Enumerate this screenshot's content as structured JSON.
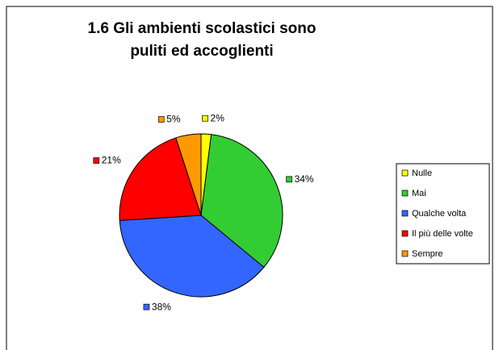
{
  "chart_data": {
    "type": "pie",
    "title": "1.6 Gli ambienti scolastici sono puliti ed accoglienti",
    "categories": [
      "Nulle",
      "Mai",
      "Qualche volta",
      "Il più delle volte",
      "Sempre"
    ],
    "values": [
      2,
      34,
      38,
      21,
      5
    ],
    "value_labels": [
      "2%",
      "34%",
      "38%",
      "21%",
      "5%"
    ],
    "colors": [
      "#ffff00",
      "#33cc33",
      "#3366ff",
      "#ff0000",
      "#ff9900"
    ],
    "legend": "right"
  }
}
